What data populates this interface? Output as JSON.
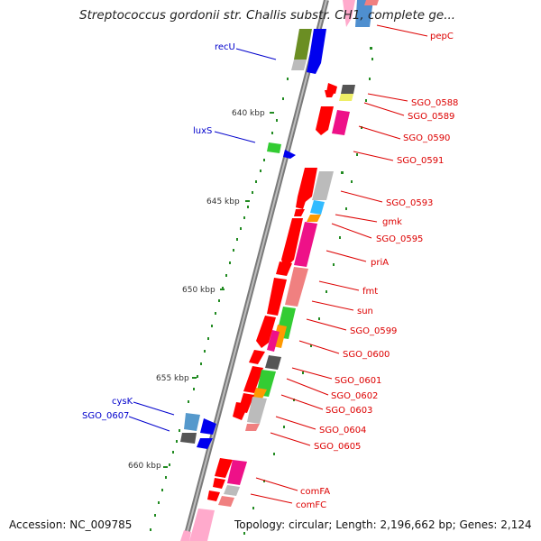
{
  "title": "Streptococcus gordonii str. Challis substr. CH1, complete ge...",
  "footer": {
    "accession": "Accession: NC_009785",
    "summary": "Topology: circular; Length: 2,196,662 bp; Genes: 2,124"
  },
  "colors": {
    "backbone": "#8c8c8c",
    "tick": "#228b22",
    "forward_label": "#0000cc",
    "reverse_label": "#dd0000",
    "red": "#ff0000",
    "blue": "#0000ee",
    "olive": "#6b8e23",
    "magenta": "#ee1188",
    "pink": "#f08080",
    "lightpink": "#ffaacc",
    "gray": "#bbbbbb",
    "darkgray": "#555555",
    "yellow": "#eeee66",
    "cyan": "#33bbff",
    "orange": "#ff9900",
    "green": "#33cc33",
    "steelblue": "#5599cc"
  },
  "kbp_labels": [
    "640 kbp",
    "645 kbp",
    "650 kbp",
    "655 kbp",
    "660 kbp"
  ],
  "gene_labels": {
    "forward": [
      "recU",
      "luxS",
      "cysK",
      "SGO_0607"
    ],
    "reverse": [
      "pepC",
      "SGO_0588",
      "SGO_0589",
      "SGO_0590",
      "SGO_0591",
      "SGO_0593",
      "gmk",
      "SGO_0595",
      "priA",
      "fmt",
      "sun",
      "SGO_0599",
      "SGO_0600",
      "SGO_0601",
      "SGO_0602",
      "SGO_0603",
      "SGO_0604",
      "SGO_0605",
      "comFA",
      "comFC"
    ]
  }
}
